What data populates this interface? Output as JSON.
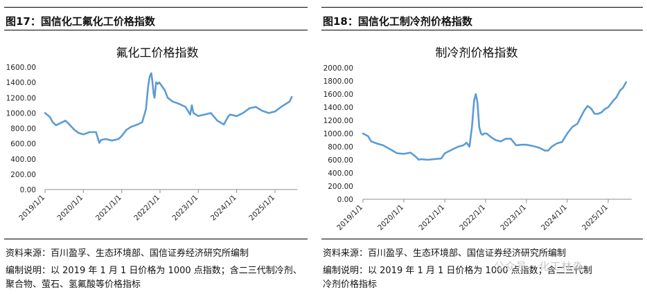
{
  "left": {
    "fig_label": "图17：国信化工氟化工价格指数",
    "source": "资料来源：百川盈孚、生态环境部、国信证券经济研究所编制",
    "note": "编制说明：以 2019 年 1 月 1 日价格为 1000 点指数；含二三代制冷剂、聚合物、萤石、氢氟酸等价格指标"
  },
  "right": {
    "fig_label": "图18：国信化工制冷剂价格指数",
    "source": "资料来源：百川盈孚、生态环境部、国信证券经济研究所编制",
    "note": "编制说明：以 2019 年 1 月 1 日价格为 1000 点指数；含二三代制冷剂价格指标",
    "watermark": "公众号 · 化工林淼"
  },
  "colors": {
    "line": "#5b9bd5",
    "axis": "#8c8c8c",
    "rule": "#000000"
  },
  "chart_data": [
    {
      "type": "line",
      "title": "氟化工价格指数",
      "ylim": [
        0,
        1600
      ],
      "y_ticks": [
        "0.00",
        "200.00",
        "400.00",
        "600.00",
        "800.00",
        "1000.00",
        "1200.00",
        "1400.00",
        "1600.00"
      ],
      "x_ticks": [
        "2019/1/1",
        "2020/1/1",
        "2021/1/1",
        "2022/1/1",
        "2023/1/1",
        "2024/1/1",
        "2025/1/1"
      ],
      "grid": false,
      "series": [
        {
          "x": [
            "2019/1/1",
            "2019/2/15",
            "2019/3/15",
            "2019/4/15",
            "2019/5/15",
            "2019/6/15",
            "2019/7/15",
            "2019/8/15",
            "2019/10/1",
            "2019/11/15",
            "2020/1/1",
            "2020/3/1",
            "2020/5/1",
            "2020/6/1",
            "2020/6/20",
            "2020/8/1",
            "2020/10/1",
            "2020/12/1",
            "2021/1/1",
            "2021/2/15",
            "2021/4/1",
            "2021/6/1",
            "2021/7/15",
            "2021/8/20",
            "2021/9/10",
            "2021/9/25",
            "2021/10/10",
            "2021/10/20",
            "2021/11/1",
            "2021/11/10",
            "2021/11/25",
            "2021/12/10",
            "2021/12/25",
            "2022/1/15",
            "2022/1/25",
            "2022/2/15",
            "2022/3/1",
            "2022/3/15",
            "2022/5/1",
            "2022/7/1",
            "2022/9/1",
            "2022/10/15",
            "2022/11/1",
            "2022/11/15",
            "2023/1/1",
            "2023/3/1",
            "2023/5/1",
            "2023/7/1",
            "2023/9/1",
            "2023/10/15",
            "2023/11/1",
            "2024/1/1",
            "2024/3/1",
            "2024/5/1",
            "2024/7/1",
            "2024/9/1",
            "2024/11/1",
            "2025/1/1",
            "2025/3/1",
            "2025/4/15",
            "2025/5/20",
            "2025/6/10"
          ],
          "values": [
            1000,
            950,
            880,
            840,
            860,
            880,
            900,
            860,
            790,
            740,
            720,
            750,
            750,
            610,
            650,
            660,
            640,
            660,
            700,
            780,
            820,
            850,
            880,
            1050,
            1350,
            1480,
            1520,
            1420,
            1250,
            1200,
            1400,
            1380,
            1400,
            1360,
            1340,
            1300,
            1250,
            1200,
            1150,
            1120,
            1080,
            980,
            1100,
            1000,
            960,
            980,
            1000,
            900,
            850,
            960,
            980,
            960,
            1000,
            1060,
            1080,
            1030,
            1000,
            1020,
            1080,
            1120,
            1150,
            1210
          ]
        }
      ]
    },
    {
      "type": "line",
      "title": "制冷剂价格指数",
      "ylim": [
        0,
        2000
      ],
      "y_ticks": [
        "0.00",
        "200.00",
        "400.00",
        "600.00",
        "800.00",
        "1000.00",
        "1200.00",
        "1400.00",
        "1600.00",
        "1800.00",
        "2000.00"
      ],
      "x_ticks": [
        "2019/1/1",
        "2020/1/1",
        "2021/1/1",
        "2022/1/1",
        "2023/1/1",
        "2024/1/1",
        "2025/1/1"
      ],
      "grid": false,
      "series": [
        {
          "x": [
            "2019/1/1",
            "2019/2/15",
            "2019/3/15",
            "2019/5/1",
            "2019/7/1",
            "2019/9/1",
            "2019/11/1",
            "2020/1/1",
            "2020/3/1",
            "2020/4/15",
            "2020/5/15",
            "2020/6/1",
            "2020/8/1",
            "2020/10/1",
            "2020/12/1",
            "2021/1/1",
            "2021/3/1",
            "2021/5/1",
            "2021/6/15",
            "2021/7/15",
            "2021/8/10",
            "2021/9/1",
            "2021/9/20",
            "2021/10/5",
            "2021/10/20",
            "2021/11/5",
            "2021/11/20",
            "2021/12/5",
            "2021/12/20",
            "2022/1/10",
            "2022/2/15",
            "2022/4/1",
            "2022/5/15",
            "2022/7/1",
            "2022/8/15",
            "2022/10/1",
            "2022/11/15",
            "2023/1/1",
            "2023/3/1",
            "2023/5/1",
            "2023/6/15",
            "2023/7/15",
            "2023/8/15",
            "2023/10/1",
            "2023/11/15",
            "2024/1/1",
            "2024/2/15",
            "2024/4/1",
            "2024/5/1",
            "2024/6/1",
            "2024/7/1",
            "2024/8/1",
            "2024/9/1",
            "2024/10/1",
            "2024/11/1",
            "2024/12/1",
            "2025/1/1",
            "2025/2/15",
            "2025/3/15",
            "2025/4/15",
            "2025/5/15",
            "2025/6/10"
          ],
          "values": [
            1000,
            960,
            880,
            850,
            820,
            760,
            700,
            690,
            710,
            650,
            600,
            610,
            600,
            610,
            620,
            700,
            750,
            800,
            820,
            860,
            800,
            1100,
            1500,
            1600,
            1480,
            1100,
            1000,
            980,
            1000,
            1000,
            950,
            900,
            880,
            920,
            920,
            820,
            830,
            830,
            810,
            780,
            740,
            740,
            800,
            850,
            870,
            1000,
            1100,
            1150,
            1250,
            1350,
            1420,
            1380,
            1300,
            1300,
            1320,
            1370,
            1400,
            1500,
            1550,
            1650,
            1700,
            1780
          ]
        }
      ]
    }
  ]
}
